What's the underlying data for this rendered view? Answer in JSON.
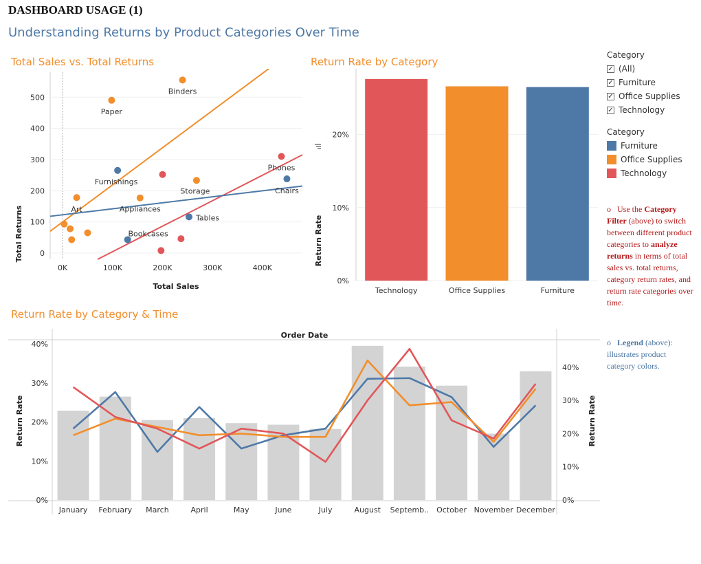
{
  "header": {
    "title": "DASHBOARD USAGE (1)",
    "subtitle": "Understanding Returns by Product Categories Over Time"
  },
  "colors": {
    "Furniture": "#4e79a7",
    "Office Supplies": "#f28e2b",
    "Technology": "#e15759",
    "panel_title": "#f28e2b",
    "bar_gray": "#d3d3d3"
  },
  "filter": {
    "heading": "Category",
    "options": [
      {
        "label": "(All)",
        "checked": true
      },
      {
        "label": "Furniture",
        "checked": true
      },
      {
        "label": "Office Supplies",
        "checked": true
      },
      {
        "label": "Technology",
        "checked": true
      }
    ]
  },
  "legend": {
    "heading": "Category",
    "items": [
      "Furniture",
      "Office Supplies",
      "Technology"
    ]
  },
  "notes": {
    "category_filter": {
      "bullet": "o",
      "p1": "Use the ",
      "b1": "Category Filter",
      "p2": " (above) to switch between different product categories to ",
      "b2": "analyze returns",
      "p3": " in terms of total sales vs. total returns, category return rates, and return rate categories over time."
    },
    "legend_note": {
      "bullet": "o",
      "b1": "Legend",
      "p1": " (above): illustrates product category colors."
    }
  },
  "chart_data": [
    {
      "type": "scatter",
      "title": "Total Sales vs. Total Returns",
      "xlabel": "Total Sales",
      "ylabel": "Total Returns",
      "xlim": [
        -25000,
        480000
      ],
      "ylim": [
        -20,
        580
      ],
      "xticks": [
        0,
        100000,
        200000,
        300000,
        400000
      ],
      "xtick_labels": [
        "0K",
        "100K",
        "200K",
        "300K",
        "400K"
      ],
      "yticks": [
        0,
        100,
        200,
        300,
        400,
        500
      ],
      "points": [
        {
          "name": "Binders",
          "category": "Office Supplies",
          "x": 240000,
          "y": 555
        },
        {
          "name": "Paper",
          "category": "Office Supplies",
          "x": 98000,
          "y": 490
        },
        {
          "name": "Furnishings",
          "category": "Furniture",
          "x": 110000,
          "y": 265
        },
        {
          "name": "",
          "category": "Technology",
          "x": 200000,
          "y": 252
        },
        {
          "name": "Storage",
          "category": "Office Supplies",
          "x": 268000,
          "y": 233
        },
        {
          "name": "Phones",
          "category": "Technology",
          "x": 438000,
          "y": 310
        },
        {
          "name": "Chairs",
          "category": "Furniture",
          "x": 449000,
          "y": 238
        },
        {
          "name": "Art",
          "category": "Office Supplies",
          "x": 28000,
          "y": 178
        },
        {
          "name": "Appliances",
          "category": "Office Supplies",
          "x": 155000,
          "y": 177
        },
        {
          "name": "Tables",
          "category": "Furniture",
          "x": 253000,
          "y": 116
        },
        {
          "name": "Bookcases",
          "category": "Furniture",
          "x": 130000,
          "y": 43
        },
        {
          "name": "",
          "category": "Technology",
          "x": 237000,
          "y": 46
        },
        {
          "name": "",
          "category": "Technology",
          "x": 197000,
          "y": 8
        },
        {
          "name": "",
          "category": "Office Supplies",
          "x": 3000,
          "y": 93
        },
        {
          "name": "",
          "category": "Office Supplies",
          "x": 15000,
          "y": 78
        },
        {
          "name": "",
          "category": "Office Supplies",
          "x": 18000,
          "y": 43
        },
        {
          "name": "",
          "category": "Office Supplies",
          "x": 50000,
          "y": 65
        }
      ],
      "trend_lines": [
        {
          "category": "Office Supplies",
          "x": [
            -25000,
            420000
          ],
          "y": [
            70,
            600
          ]
        },
        {
          "category": "Technology",
          "x": [
            70000,
            480000
          ],
          "y": [
            -20,
            315
          ]
        },
        {
          "category": "Furniture",
          "x": [
            -25000,
            480000
          ],
          "y": [
            118,
            215
          ]
        }
      ]
    },
    {
      "type": "bar",
      "title": "Return Rate by Category",
      "ylabel": "Return Rate",
      "categories": [
        "Technology",
        "Office Supplies",
        "Furniture"
      ],
      "values": [
        0.276,
        0.266,
        0.265
      ],
      "ylim": [
        0,
        0.29
      ],
      "yticks": [
        0,
        0.1,
        0.2
      ],
      "ytick_labels": [
        "0%",
        "10%",
        "20%"
      ]
    },
    {
      "type": "bar",
      "title": "Return Rate by Category & Time",
      "xlabel": "Order Date",
      "ylabel": "Return Rate",
      "categories": [
        "January",
        "February",
        "March",
        "April",
        "May",
        "June",
        "July",
        "August",
        "Septemb..",
        "October",
        "November",
        "December"
      ],
      "bar_values": [
        0.229,
        0.265,
        0.205,
        0.21,
        0.197,
        0.193,
        0.182,
        0.395,
        0.342,
        0.293,
        0.17,
        0.33
      ],
      "left_ylim": [
        0,
        0.4
      ],
      "left_yticks": [
        0,
        0.1,
        0.2,
        0.3,
        0.4
      ],
      "left_ytick_labels": [
        "0%",
        "10%",
        "20%",
        "30%",
        "40%"
      ],
      "right_ylim": [
        0,
        0.47
      ],
      "right_yticks": [
        0,
        0.1,
        0.2,
        0.3,
        0.4
      ],
      "right_ytick_labels": [
        "0%",
        "10%",
        "20%",
        "30%",
        "40%"
      ],
      "series": [
        {
          "name": "Furniture",
          "values": [
            0.215,
            0.325,
            0.145,
            0.28,
            0.155,
            0.195,
            0.215,
            0.365,
            0.367,
            0.31,
            0.16,
            0.285
          ]
        },
        {
          "name": "Office Supplies",
          "values": [
            0.195,
            0.245,
            0.22,
            0.195,
            0.2,
            0.19,
            0.19,
            0.42,
            0.285,
            0.295,
            0.175,
            0.335
          ]
        },
        {
          "name": "Technology",
          "values": [
            0.34,
            0.25,
            0.215,
            0.155,
            0.215,
            0.2,
            0.115,
            0.3,
            0.455,
            0.24,
            0.185,
            0.35
          ]
        }
      ]
    }
  ]
}
